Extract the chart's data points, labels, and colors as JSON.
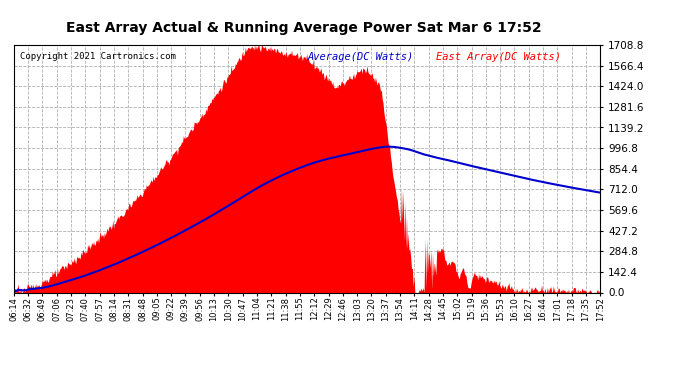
{
  "title": "East Array Actual & Running Average Power Sat Mar 6 17:52",
  "copyright": "Copyright 2021 Cartronics.com",
  "legend_avg": "Average(DC Watts)",
  "legend_east": "East Array(DC Watts)",
  "ymin": 0.0,
  "ymax": 1708.8,
  "yticks": [
    0.0,
    142.4,
    284.8,
    427.2,
    569.6,
    712.0,
    854.4,
    996.8,
    1139.2,
    1281.6,
    1424.0,
    1566.4,
    1708.8
  ],
  "bg_color": "#ffffff",
  "plot_bg_color": "#ffffff",
  "grid_color": "#b0b0b0",
  "fill_color": "#ff0000",
  "avg_line_color": "#0000cc",
  "east_line_color": "#ff0000",
  "title_color": "#000000",
  "copyright_color": "#000000",
  "x_labels": [
    "06:14",
    "06:32",
    "06:49",
    "07:06",
    "07:23",
    "07:40",
    "07:57",
    "08:14",
    "08:31",
    "08:48",
    "09:05",
    "09:22",
    "09:39",
    "09:56",
    "10:13",
    "10:30",
    "10:47",
    "11:04",
    "11:21",
    "11:38",
    "11:55",
    "12:12",
    "12:29",
    "12:46",
    "13:03",
    "13:20",
    "13:37",
    "13:54",
    "14:11",
    "14:28",
    "14:45",
    "15:02",
    "15:19",
    "15:36",
    "15:53",
    "16:10",
    "16:27",
    "16:44",
    "17:01",
    "17:18",
    "17:35",
    "17:52"
  ]
}
